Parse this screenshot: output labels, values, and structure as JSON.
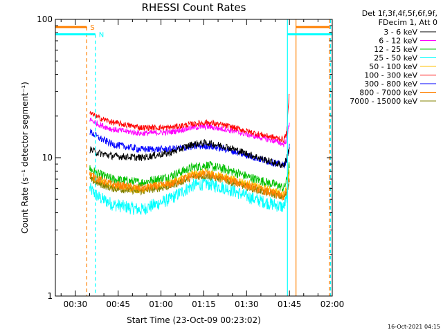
{
  "chart_data": {
    "type": "line",
    "title": "RHESSI Count Rates",
    "xlabel": "Start Time (23-Oct-09 00:23:02)",
    "ylabel": "Count Rate (s⁻¹ detector segment⁻¹)",
    "yscale": "log",
    "ylim": [
      1,
      100
    ],
    "xlim_minutes": [
      0,
      97
    ],
    "x_ticks": [
      {
        "minute": 7,
        "label": "00:30"
      },
      {
        "minute": 22,
        "label": "00:45"
      },
      {
        "minute": 37,
        "label": "01:00"
      },
      {
        "minute": 52,
        "label": "01:15"
      },
      {
        "minute": 67,
        "label": "01:30"
      },
      {
        "minute": 82,
        "label": "01:45"
      },
      {
        "minute": 97,
        "label": "02:00"
      }
    ],
    "y_ticks": [
      {
        "value": 1,
        "label": "1"
      },
      {
        "value": 10,
        "label": "10"
      },
      {
        "value": 100,
        "label": "100"
      }
    ],
    "legend": {
      "header_line1": "Det 1f,3f,4f,5f,6f,9f,",
      "header_line2": "FDecim 1, Att 0"
    },
    "series": [
      {
        "name": "3 - 6 keV",
        "color": "#000000",
        "minutes": [
          12,
          15,
          20,
          30,
          40,
          48,
          53,
          60,
          70,
          78,
          80,
          81,
          82
        ],
        "values": [
          11.5,
          10.8,
          10.3,
          10.0,
          10.8,
          12.5,
          12.8,
          12.0,
          10.2,
          9.0,
          8.8,
          9.8,
          12.0
        ]
      },
      {
        "name": "6 - 12 keV",
        "color": "#ff00ff",
        "minutes": [
          12,
          15,
          20,
          30,
          40,
          48,
          53,
          60,
          70,
          78,
          80,
          81,
          82
        ],
        "values": [
          19.0,
          17.5,
          16.0,
          15.0,
          15.3,
          16.5,
          16.8,
          16.0,
          14.3,
          13.0,
          12.5,
          13.5,
          18.0
        ]
      },
      {
        "name": "12 - 25 keV",
        "color": "#00c000",
        "minutes": [
          12,
          15,
          20,
          30,
          40,
          48,
          53,
          60,
          70,
          78,
          80,
          81,
          82
        ],
        "values": [
          8.3,
          7.6,
          7.0,
          6.6,
          7.3,
          8.5,
          8.8,
          8.2,
          7.0,
          6.3,
          6.0,
          6.8,
          9.0
        ]
      },
      {
        "name": "25 - 50 keV",
        "color": "#00ffff",
        "minutes": [
          12,
          15,
          20,
          30,
          40,
          48,
          53,
          60,
          70,
          78,
          80,
          81,
          82
        ],
        "values": [
          6.0,
          5.2,
          4.6,
          4.2,
          5.0,
          6.3,
          6.5,
          6.0,
          5.0,
          4.5,
          4.4,
          5.0,
          7.5
        ]
      },
      {
        "name": "50 - 100 keV",
        "color": "#ffc000",
        "minutes": [
          12,
          15,
          20,
          30,
          40,
          48,
          53,
          60,
          70,
          78,
          80,
          81,
          82
        ],
        "values": [
          7.4,
          6.8,
          6.2,
          5.9,
          6.5,
          7.6,
          7.8,
          7.2,
          6.2,
          5.6,
          5.4,
          6.0,
          8.0
        ]
      },
      {
        "name": "100 - 300 keV",
        "color": "#ff0000",
        "minutes": [
          12,
          15,
          20,
          30,
          40,
          48,
          53,
          60,
          70,
          78,
          80,
          81,
          82
        ],
        "values": [
          21.0,
          19.5,
          18.0,
          16.5,
          16.5,
          17.5,
          18.0,
          17.0,
          15.0,
          13.8,
          13.5,
          15.0,
          30.0
        ]
      },
      {
        "name": "300 - 800 keV",
        "color": "#0000ff",
        "minutes": [
          12,
          15,
          20,
          30,
          40,
          48,
          53,
          60,
          70,
          78,
          80,
          81,
          82
        ],
        "values": [
          15.5,
          14.0,
          12.5,
          11.5,
          11.5,
          12.0,
          12.2,
          11.5,
          10.0,
          9.0,
          8.8,
          9.5,
          12.0
        ]
      },
      {
        "name": "800 - 7000 keV",
        "color": "#ff8000",
        "minutes": [
          12,
          15,
          20,
          30,
          40,
          48,
          53,
          60,
          70,
          78,
          80,
          81,
          82
        ],
        "values": [
          7.6,
          7.0,
          6.4,
          6.0,
          6.4,
          7.4,
          7.6,
          7.0,
          6.0,
          5.4,
          5.2,
          5.8,
          7.5
        ]
      },
      {
        "name": "7000 - 15000 keV",
        "color": "#808000",
        "minutes": [
          12,
          15,
          20,
          30,
          40,
          48,
          53,
          60,
          70,
          78,
          80,
          81,
          82
        ],
        "values": [
          7.0,
          6.5,
          6.0,
          5.7,
          6.2,
          7.2,
          7.4,
          6.8,
          5.9,
          5.3,
          5.1,
          5.6,
          7.0
        ]
      }
    ],
    "attenuator_markers": [
      {
        "label": "S",
        "color": "#ff8000",
        "level_value": 88,
        "line_value": 88,
        "span_minutes": [
          0,
          11
        ],
        "dashed_line_minute": 11
      },
      {
        "label": "N",
        "color": "#00ffff",
        "level_value": 78,
        "line_value": 78,
        "span_minutes": [
          0,
          14
        ],
        "dashed_line_minute": 14
      }
    ],
    "vertical_lines": [
      {
        "minute": 81.3,
        "color": "#00ffff",
        "style": "solid"
      },
      {
        "minute": 84.3,
        "color": "#ff8000",
        "style": "solid"
      },
      {
        "minute": 96.0,
        "color": "#ff8000",
        "style": "dashed"
      },
      {
        "minute": 96.4,
        "color": "#00ffff",
        "style": "dashed"
      }
    ],
    "right_level_segments": [
      {
        "color": "#ff8000",
        "value": 88,
        "span_minutes": [
          84.3,
          96
        ]
      },
      {
        "color": "#00ffff",
        "value": 78,
        "span_minutes": [
          81.3,
          97
        ]
      }
    ],
    "footer_timestamp": "16-Oct-2021 04:15"
  }
}
